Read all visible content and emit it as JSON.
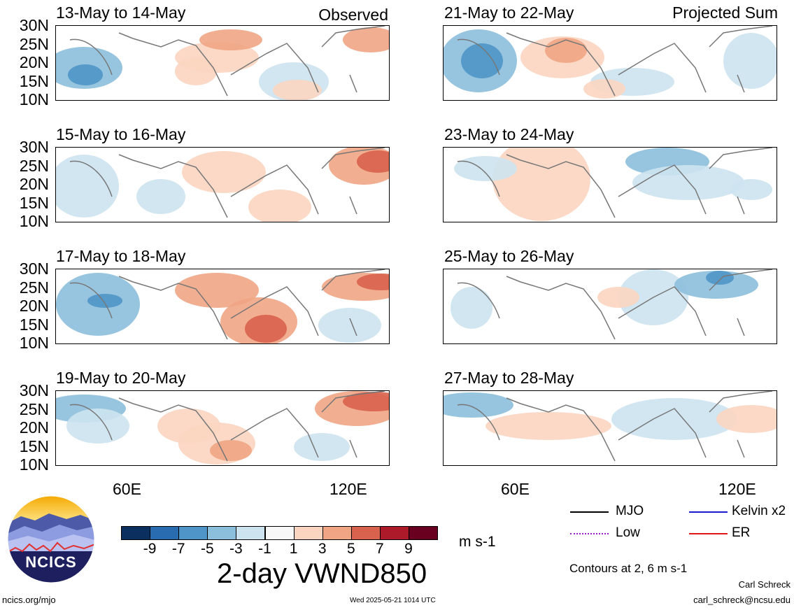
{
  "panels": [
    {
      "title": "13-May to 14-May",
      "tag": "Observed"
    },
    {
      "title": "15-May to 16-May",
      "tag": ""
    },
    {
      "title": "17-May to 18-May",
      "tag": ""
    },
    {
      "title": "19-May to 20-May",
      "tag": ""
    },
    {
      "title": "21-May to 22-May",
      "tag": "Projected Sum"
    },
    {
      "title": "23-May to 24-May",
      "tag": ""
    },
    {
      "title": "25-May to 26-May",
      "tag": ""
    },
    {
      "title": "27-May to 28-May",
      "tag": ""
    }
  ],
  "y_ticks": [
    "30N",
    "25N",
    "20N",
    "15N",
    "10N"
  ],
  "x_ticks": [
    "60E",
    "120E"
  ],
  "colorbar": {
    "labels": [
      "-9",
      "-7",
      "-5",
      "-3",
      "-1",
      "1",
      "3",
      "5",
      "7",
      "9"
    ],
    "colors": [
      "#0b2f5f",
      "#2a6cb0",
      "#4f95c8",
      "#8cbfdc",
      "#cde3f0",
      "#f7f7f7",
      "#fbd5c0",
      "#f0a584",
      "#d8624d",
      "#ad1a2a",
      "#6a0020"
    ],
    "units": "m s-1"
  },
  "figure_title": "2-day VWND850",
  "logo_text": "NCICS",
  "legend": {
    "items": [
      {
        "label": "MJO",
        "color": "#000000"
      },
      {
        "label": "Kelvin x2",
        "color": "#1a1ad0"
      },
      {
        "label": "Low",
        "color": "#9a1fd0"
      },
      {
        "label": "ER",
        "color": "#e01818"
      }
    ],
    "contours_note": "Contours at 2, 6 m s-1"
  },
  "footer": {
    "url": "ncics.org/mjo",
    "timestamp": "Wed 2025-05-21 1014 UTC",
    "author": "Carl Schreck",
    "email": "carl_schreck@ncsu.edu"
  }
}
